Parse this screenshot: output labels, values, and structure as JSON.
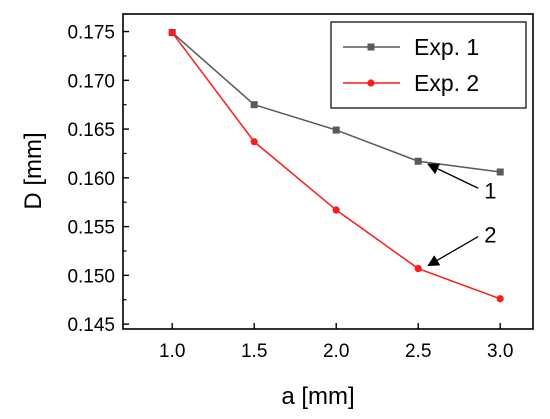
{
  "chart_data": {
    "type": "line",
    "title": "",
    "xlabel": "a [mm]",
    "ylabel": "D [mm]",
    "xlim": [
      0.7,
      3.2
    ],
    "ylim": [
      0.1445,
      0.1768
    ],
    "x": [
      1.0,
      1.5,
      2.0,
      2.5,
      3.0
    ],
    "x_ticks": [
      1.0,
      1.5,
      2.0,
      2.5,
      3.0
    ],
    "x_tick_labels": [
      "1.0",
      "1.5",
      "2.0",
      "2.5",
      "3.0"
    ],
    "y_ticks": [
      0.145,
      0.15,
      0.155,
      0.16,
      0.165,
      0.17,
      0.175
    ],
    "y_tick_labels": [
      "0.145",
      "0.150",
      "0.155",
      "0.160",
      "0.165",
      "0.170",
      "0.175"
    ],
    "series": [
      {
        "name": "Exp. 1",
        "marker": "square",
        "color": "#595959",
        "values": [
          0.1749,
          0.1675,
          0.1649,
          0.1617,
          0.1606
        ]
      },
      {
        "name": "Exp. 2",
        "marker": "circle",
        "color": "#ff1a1a",
        "values": [
          0.1749,
          0.1637,
          0.1567,
          0.1507,
          0.1476
        ]
      }
    ],
    "legend": "top-right",
    "grid": false,
    "annotations": [
      {
        "text": "1",
        "series": 0,
        "point_x": 2.5
      },
      {
        "text": "2",
        "series": 1,
        "point_x": 2.5
      }
    ]
  }
}
